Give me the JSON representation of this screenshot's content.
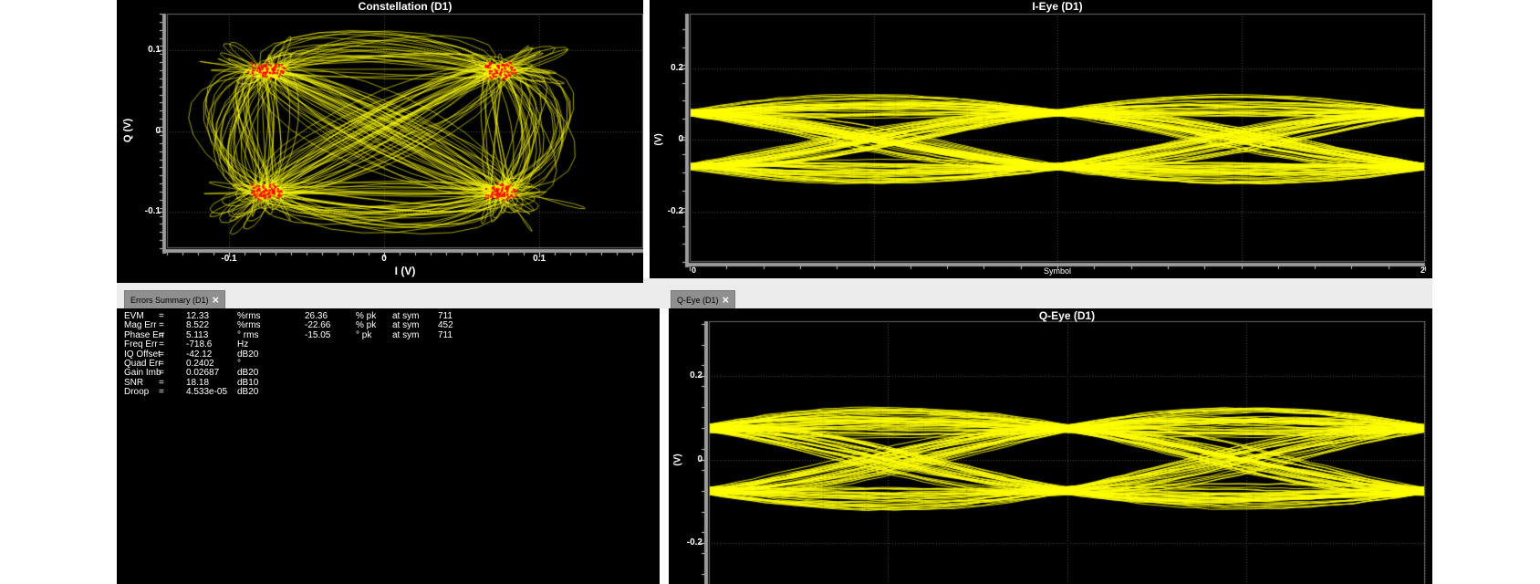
{
  "window": {
    "bg_color": "#ffffff",
    "strip_color": "#ececec",
    "panel_color": "#000000",
    "trace_color": "#ffff00",
    "symbol_color": "#ff0000",
    "grid_color": "#4b4b4b",
    "axis_color": "#9c9c9c",
    "text_color": "#ffffff"
  },
  "tabs": [
    {
      "id": "errors-summary",
      "label": "Errors Summary (D1)",
      "close_glyph": "×"
    },
    {
      "id": "q-eye",
      "label": "Q-Eye (D1)",
      "close_glyph": "×"
    }
  ],
  "errors_summary": {
    "rows": [
      {
        "name": "EVM",
        "eq": "=",
        "value": "12.33",
        "unit": "%rms",
        "pk": "26.36",
        "pk_unit": "% pk",
        "at_label": "at sym",
        "at_value": "711"
      },
      {
        "name": "Mag Err",
        "eq": "=",
        "value": "8.522",
        "unit": "%rms",
        "pk": "-22.66",
        "pk_unit": "% pk",
        "at_label": "at sym",
        "at_value": "452"
      },
      {
        "name": "Phase Err",
        "eq": "=",
        "value": "5.113",
        "unit": "° rms",
        "pk": "-15.05",
        "pk_unit": "° pk",
        "at_label": "at sym",
        "at_value": "711"
      },
      {
        "name": "Freq Err",
        "eq": "=",
        "value": "-718.6",
        "unit": "Hz"
      },
      {
        "name": "IQ Offset",
        "eq": "=",
        "value": "-42.12",
        "unit": "dB20"
      },
      {
        "name": "Quad Err",
        "eq": "=",
        "value": "0.2402",
        "unit": "°"
      },
      {
        "name": "Gain Imb",
        "eq": "=",
        "value": "0.02687",
        "unit": "dB20"
      },
      {
        "name": "SNR",
        "eq": "=",
        "value": "18.18",
        "unit": "dB10"
      },
      {
        "name": "Droop",
        "eq": "=",
        "value": "4.533e-05",
        "unit": "dB20"
      }
    ]
  },
  "chart_data": [
    {
      "id": "constellation",
      "type": "scatter",
      "subtype": "constellation",
      "title": "Constellation (D1)",
      "xlabel": "I (V)",
      "ylabel": "Q (V)",
      "xticks": [
        -0.1,
        0,
        0.1
      ],
      "yticks": [
        0.1,
        0,
        -0.1
      ],
      "xlim": [
        -0.14,
        0.167
      ],
      "ylim": [
        -0.145,
        0.145
      ],
      "grid_x": [
        -0.1,
        0,
        0.1
      ],
      "grid_y": [
        0.1,
        0,
        -0.1
      ],
      "modulation": "QPSK",
      "symbol_points": [
        [
          0.075,
          0.075
        ],
        [
          -0.075,
          0.075
        ],
        [
          -0.075,
          -0.075
        ],
        [
          0.075,
          -0.075
        ]
      ],
      "symbol_level": 0.075,
      "level_jitter": 0.22,
      "n_symbols": 330,
      "beta": 0.4,
      "trace_color": "#ffff00",
      "symbol_color": "#ff0000"
    },
    {
      "id": "i_eye",
      "type": "line",
      "subtype": "eye",
      "title": "I-Eye (D1)",
      "xlabel": "Symbol",
      "ylabel": "(V)",
      "xticks": [
        0,
        2
      ],
      "yticks": [
        0.2,
        0,
        -0.2
      ],
      "xlim": [
        0,
        2
      ],
      "ylim": [
        -0.341,
        0.352
      ],
      "grid_x": [
        0.5,
        1,
        1.5,
        2
      ],
      "grid_y": [
        0.2,
        0,
        -0.2
      ],
      "eye_level": 0.075,
      "level_jitter": 0.25,
      "n_traces": 150,
      "beta": 0.4,
      "trace_color": "#ffff00"
    },
    {
      "id": "q_eye",
      "type": "line",
      "subtype": "eye",
      "title": "Q-Eye (D1)",
      "xlabel": "",
      "ylabel": "(V)",
      "xticks": [],
      "yticks": [
        0.2,
        0,
        -0.2
      ],
      "xlim": [
        0,
        2
      ],
      "ylim": [
        -0.324,
        0.332
      ],
      "grid_x": [
        0.5,
        1,
        1.5,
        2
      ],
      "grid_y": [
        0.2,
        0,
        -0.2
      ],
      "eye_level": 0.075,
      "level_jitter": 0.25,
      "n_traces": 150,
      "beta": 0.4,
      "trace_color": "#ffff00"
    }
  ]
}
